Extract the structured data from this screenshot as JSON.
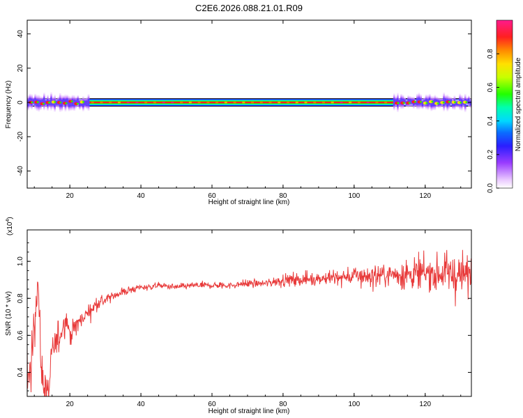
{
  "title": "C2E6.2026.088.21.01.R09",
  "chart_data": [
    {
      "type": "heatmap",
      "xlabel": "Height of straight line (km)",
      "ylabel": "Frequency (Hz)",
      "xlim": [
        8,
        133
      ],
      "ylim": [
        -50,
        48
      ],
      "xticks": [
        20,
        40,
        60,
        80,
        100,
        120
      ],
      "yticks": [
        -40,
        -20,
        0,
        20,
        40
      ],
      "colorbar": {
        "label": "Normalized spectral amplitude",
        "range": [
          0,
          1
        ],
        "ticks": [
          "0.0",
          "0.2",
          "0.4",
          "0.6",
          "0.8"
        ]
      },
      "band_center_hz": 0,
      "band_halfwidth_hz": 2,
      "wide_regions_km": [
        [
          8,
          25
        ],
        [
          111,
          133
        ]
      ]
    },
    {
      "type": "line",
      "xlabel": "Height of straight line (km)",
      "ylabel": "SNR (10 * v/v)",
      "y_multiplier_label": "(x10",
      "y_multiplier_exp": "4",
      "y_multiplier_close": ")",
      "xlim": [
        8,
        133
      ],
      "ylim": [
        0.27,
        1.17
      ],
      "xticks": [
        20,
        40,
        60,
        80,
        100,
        120
      ],
      "yticks": [
        "0.4",
        "0.6",
        "0.8",
        "1.0"
      ],
      "color": "#e83a3a",
      "series": [
        {
          "x": [
            8,
            9,
            10,
            11,
            12,
            13,
            14,
            15,
            16,
            17,
            18,
            19,
            20,
            22,
            24,
            26,
            28,
            30,
            32,
            34,
            36,
            38,
            40,
            42,
            45,
            50,
            55,
            60,
            65,
            70,
            75,
            80,
            85,
            90,
            95,
            100,
            105,
            110,
            115,
            120,
            125,
            130,
            133
          ],
          "values": [
            0.45,
            0.35,
            0.7,
            0.9,
            0.4,
            0.32,
            0.28,
            0.5,
            0.55,
            0.6,
            0.65,
            0.7,
            0.6,
            0.66,
            0.7,
            0.74,
            0.78,
            0.79,
            0.81,
            0.83,
            0.84,
            0.85,
            0.86,
            0.86,
            0.87,
            0.86,
            0.87,
            0.87,
            0.87,
            0.88,
            0.88,
            0.9,
            0.9,
            0.91,
            0.91,
            0.92,
            0.92,
            0.93,
            0.93,
            0.93,
            0.94,
            0.92,
            0.93
          ],
          "noise_sigma": [
            0.1,
            0.12,
            0.12,
            0.1,
            0.1,
            0.1,
            0.08,
            0.08,
            0.08,
            0.07,
            0.07,
            0.06,
            0.05,
            0.05,
            0.04,
            0.04,
            0.03,
            0.03,
            0.02,
            0.02,
            0.02,
            0.015,
            0.015,
            0.015,
            0.015,
            0.015,
            0.015,
            0.015,
            0.015,
            0.02,
            0.02,
            0.03,
            0.03,
            0.035,
            0.04,
            0.045,
            0.05,
            0.06,
            0.07,
            0.08,
            0.09,
            0.1,
            0.1
          ]
        }
      ]
    }
  ]
}
